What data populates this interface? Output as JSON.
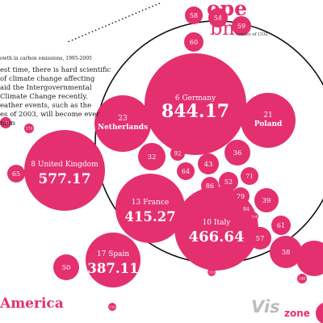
{
  "header": {
    "region_title": "ope",
    "subtitle": "bn",
    "unit": "tonnes of CO2",
    "growth_label": "owth in carbon emissions, 1995-2005"
  },
  "intro_lines": [
    "est time, there is hard scientific",
    "of climate change affecting",
    "aid the Intergovernmental",
    "Climate Change recently.",
    "eather events, such as the",
    "es of 2003, will become ever",
    "mon"
  ],
  "next_section": "America",
  "watermark": {
    "left": "Vis",
    "right": "zone"
  },
  "colors": {
    "bubble": "#e4306f",
    "label": "#ffffff",
    "ring": "#111111",
    "text": "#222222"
  },
  "chart_data": {
    "type": "bubble",
    "title": "",
    "unit": "tonnes of CO2",
    "labeled_bubbles": [
      {
        "rank": "6",
        "country": "Germany",
        "value": "844.17"
      },
      {
        "rank": "10",
        "country": "Italy",
        "value": "466.64"
      },
      {
        "rank": "13",
        "country": "France",
        "value": "415.27"
      },
      {
        "rank": "17",
        "country": "Spain",
        "value": "387.11"
      },
      {
        "rank": "8",
        "country": "United Kingdom",
        "value": "577.17"
      },
      {
        "rank": "23",
        "country": "Netherlands",
        "value": ""
      },
      {
        "rank": "21",
        "country": "Poland",
        "value": ""
      }
    ],
    "rank_bubbles": [
      "58",
      "54",
      "59",
      "60",
      "32",
      "92",
      "64",
      "43",
      "36",
      "52",
      "71",
      "86",
      "79",
      "84",
      "39",
      "61",
      "57",
      "38",
      "65",
      "50",
      "132",
      "174",
      "124",
      "135",
      "133",
      "140"
    ]
  }
}
